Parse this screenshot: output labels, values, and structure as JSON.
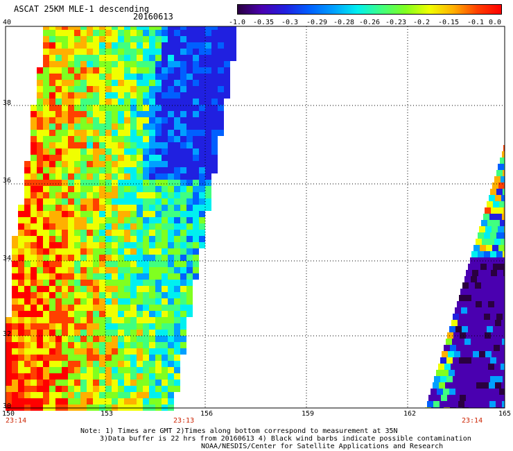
{
  "title": "ASCAT 25KM MLE-1 descending",
  "date": "20160613",
  "colorbar": {
    "labels": [
      "-1.0",
      "-0.35",
      "-0.3",
      "-0.29",
      "-0.28",
      "-0.26",
      "-0.23",
      "-0.2",
      "-0.15",
      "-0.1",
      "0.0"
    ],
    "colors": [
      "#2a0040",
      "#4a00b0",
      "#2020e0",
      "#0060ff",
      "#00a0ff",
      "#00f0f0",
      "#40ff80",
      "#80ff20",
      "#f0ff00",
      "#ffb000",
      "#ff4000",
      "#ff0000"
    ]
  },
  "map": {
    "lat_labels": [
      "40",
      "38",
      "36",
      "34",
      "32",
      "30"
    ],
    "lon_labels": [
      "150",
      "153",
      "156",
      "159",
      "162",
      "165"
    ],
    "time_labels": [
      "23:14",
      "23:13",
      "23:14"
    ],
    "lat_range": [
      30,
      40
    ],
    "lon_range": [
      150,
      165
    ]
  },
  "notes": {
    "line1": "Note: 1) Times are GMT 2)Times along bottom correspond to measurement at 35N",
    "line2": "3)Data buffer is 22 hrs from 20160613 4) Black wind barbs indicate possible contamination",
    "line3": "NOAA/NESDIS/Center for Satellite Applications and Research"
  }
}
